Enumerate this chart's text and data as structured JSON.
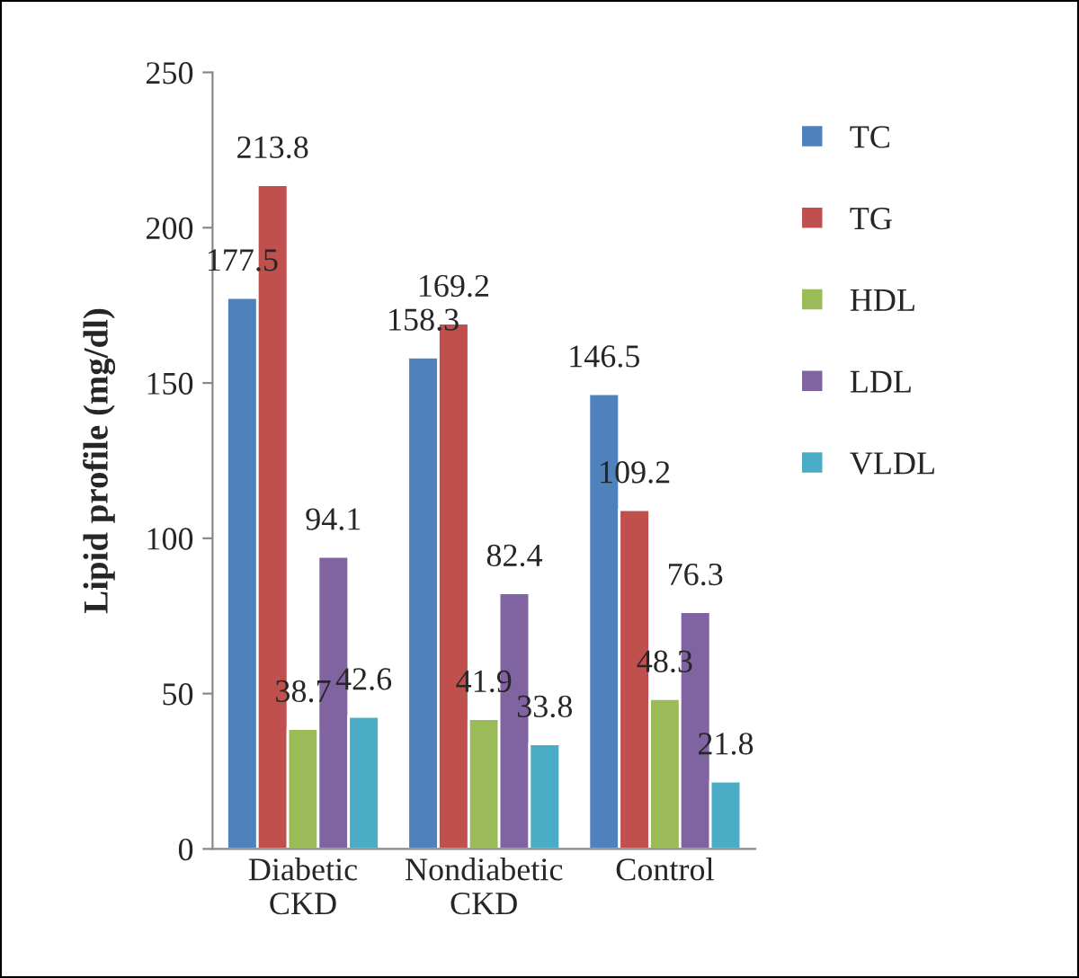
{
  "chart_data": {
    "type": "bar",
    "ylabel": "Lipid profile (mg/dl)",
    "categories": [
      "Diabetic\nCKD",
      "Nondiabetic\nCKD",
      "Control"
    ],
    "series": [
      {
        "name": "TC",
        "color": "#4f81bd",
        "values": [
          177.5,
          158.3,
          146.5
        ]
      },
      {
        "name": "TG",
        "color": "#c0504d",
        "values": [
          213.8,
          169.2,
          109.2
        ]
      },
      {
        "name": "HDL",
        "color": "#9bbb59",
        "values": [
          38.7,
          41.9,
          48.3
        ]
      },
      {
        "name": "LDL",
        "color": "#8064a2",
        "values": [
          94.1,
          82.4,
          76.3
        ]
      },
      {
        "name": "VLDL",
        "color": "#4bacc6",
        "values": [
          42.6,
          33.8,
          21.8
        ]
      }
    ],
    "ylim": [
      0,
      250
    ],
    "yticks": [
      0,
      50,
      100,
      150,
      200,
      250
    ],
    "data_labels": true,
    "grid": false,
    "legend": "top right"
  }
}
